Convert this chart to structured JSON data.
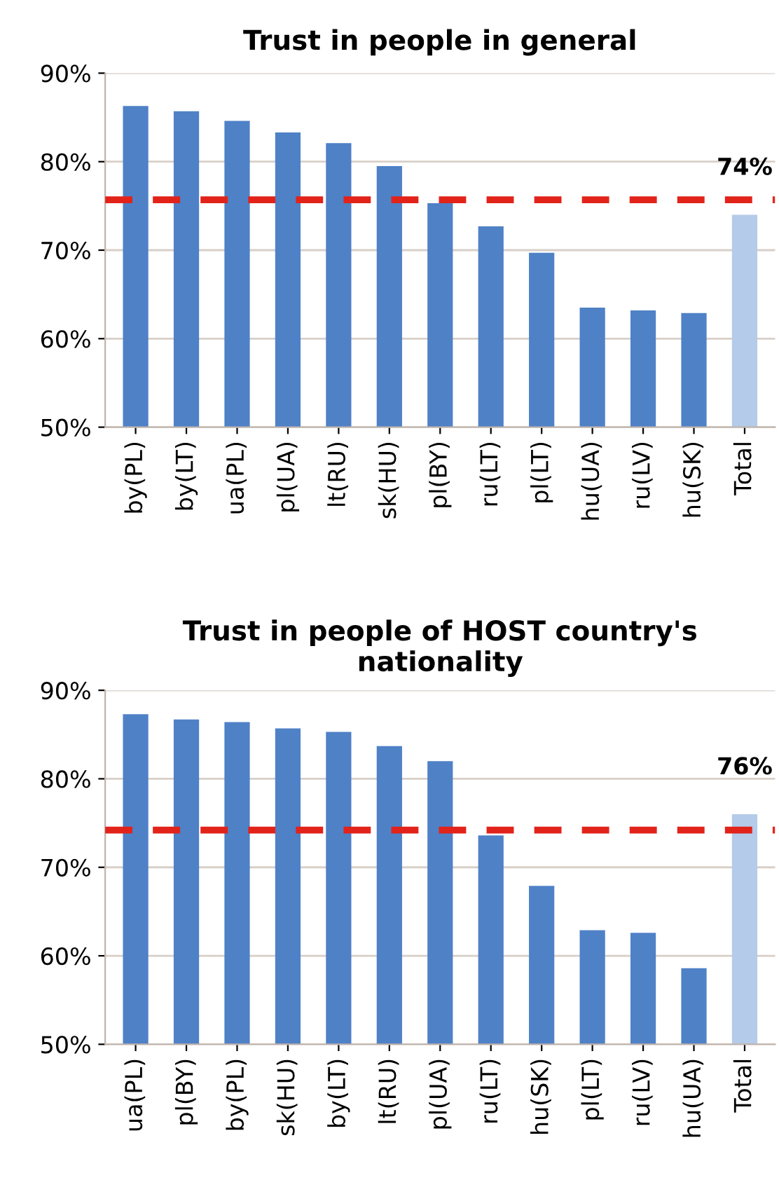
{
  "chart_data": [
    {
      "type": "bar",
      "title": "Trust in people in general",
      "categories": [
        "by(PL)",
        "by(LT)",
        "ua(PL)",
        "pl(UA)",
        "lt(RU)",
        "sk(HU)",
        "pl(BY)",
        "ru(LT)",
        "pl(LT)",
        "hu(UA)",
        "ru(LV)",
        "hu(SK)",
        "Total"
      ],
      "values": [
        86.3,
        85.7,
        84.6,
        83.3,
        82.1,
        79.5,
        75.3,
        72.7,
        69.7,
        63.5,
        63.2,
        62.9,
        74
      ],
      "colors": [
        "#4f81c7",
        "#4f81c7",
        "#4f81c7",
        "#4f81c7",
        "#4f81c7",
        "#4f81c7",
        "#4f81c7",
        "#4f81c7",
        "#4f81c7",
        "#4f81c7",
        "#4f81c7",
        "#4f81c7",
        "#b4cbe9"
      ],
      "value_labels": [
        null,
        null,
        null,
        null,
        null,
        null,
        null,
        null,
        null,
        null,
        null,
        null,
        "74%"
      ],
      "ylim": [
        50,
        90
      ],
      "yticks": [
        {
          "value": 50,
          "label": "50%"
        },
        {
          "value": 60,
          "label": "60%"
        },
        {
          "value": 70,
          "label": "70%"
        },
        {
          "value": 80,
          "label": "80%"
        },
        {
          "value": 90,
          "label": "90%"
        }
      ],
      "ref_lines": [
        {
          "axis": "y",
          "value": 75.7,
          "color": "#e2231a",
          "line_style": "dashed"
        }
      ],
      "grid": "y",
      "legend": false
    },
    {
      "type": "bar",
      "title": "Trust in people of HOST country's nationality",
      "categories": [
        "ua(PL)",
        "pl(BY)",
        "by(PL)",
        "sk(HU)",
        "by(LT)",
        "lt(RU)",
        "pl(UA)",
        "ru(LT)",
        "hu(SK)",
        "pl(LT)",
        "ru(LV)",
        "hu(UA)",
        "Total"
      ],
      "values": [
        87.3,
        86.7,
        86.4,
        85.7,
        85.3,
        83.7,
        82.0,
        73.6,
        67.9,
        62.9,
        62.6,
        58.6,
        76
      ],
      "colors": [
        "#4f81c7",
        "#4f81c7",
        "#4f81c7",
        "#4f81c7",
        "#4f81c7",
        "#4f81c7",
        "#4f81c7",
        "#4f81c7",
        "#4f81c7",
        "#4f81c7",
        "#4f81c7",
        "#4f81c7",
        "#b4cbe9"
      ],
      "value_labels": [
        null,
        null,
        null,
        null,
        null,
        null,
        null,
        null,
        null,
        null,
        null,
        null,
        "76%"
      ],
      "ylim": [
        50,
        90
      ],
      "yticks": [
        {
          "value": 50,
          "label": "50%"
        },
        {
          "value": 60,
          "label": "60%"
        },
        {
          "value": 70,
          "label": "70%"
        },
        {
          "value": 80,
          "label": "80%"
        },
        {
          "value": 90,
          "label": "90%"
        }
      ],
      "ref_lines": [
        {
          "axis": "y",
          "value": 74.2,
          "color": "#e2231a",
          "line_style": "dashed"
        }
      ],
      "grid": "y",
      "legend": false
    }
  ]
}
